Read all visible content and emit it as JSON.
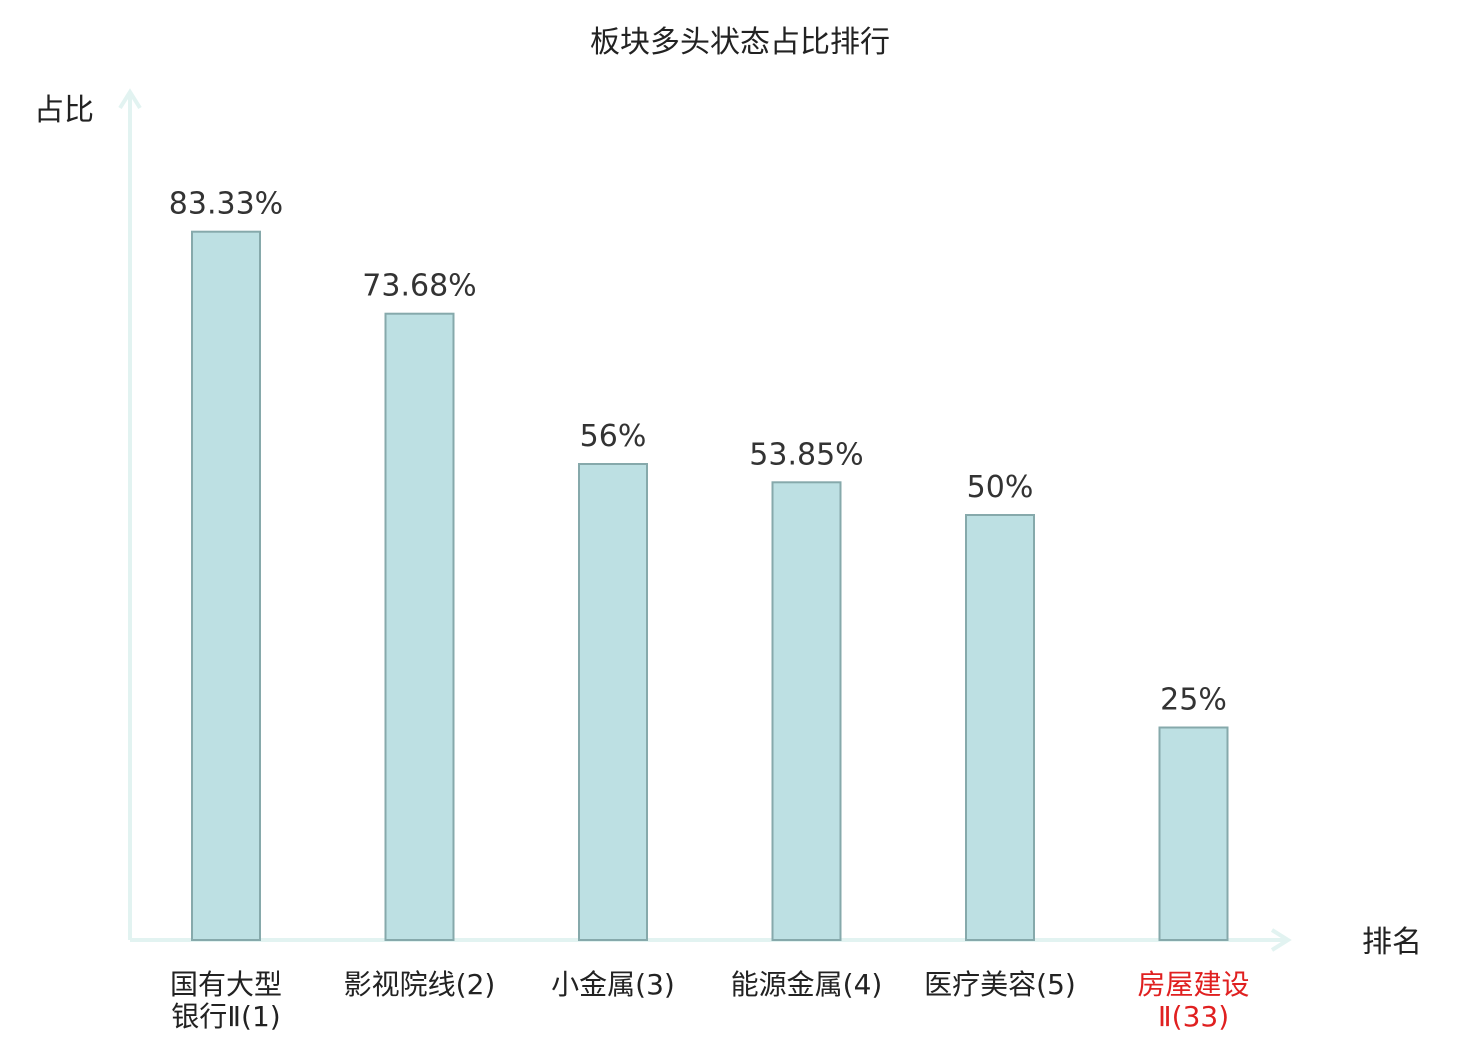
{
  "chart_data": {
    "type": "bar",
    "title": "板块多头状态占比排行",
    "ylabel": "占比",
    "xlabel": "排名",
    "ylim": [
      0,
      100
    ],
    "grid": false,
    "legend": "none",
    "categories": [
      {
        "lines": [
          "国有大型",
          "银行Ⅱ(1)"
        ],
        "highlight": false
      },
      {
        "lines": [
          "影视院线(2)"
        ],
        "highlight": false
      },
      {
        "lines": [
          "小金属(3)"
        ],
        "highlight": false
      },
      {
        "lines": [
          "能源金属(4)"
        ],
        "highlight": false
      },
      {
        "lines": [
          "医疗美容(5)"
        ],
        "highlight": false
      },
      {
        "lines": [
          "房屋建设",
          "Ⅱ(33)"
        ],
        "highlight": true
      }
    ],
    "values": [
      83.33,
      73.68,
      56,
      53.85,
      50,
      25
    ],
    "value_labels": [
      "83.33%",
      "73.68%",
      "56%",
      "53.85%",
      "50%",
      "25%"
    ],
    "colors": {
      "bar_fill": "#bde0e3",
      "bar_stroke": "#86a9ab",
      "axis": "#e2f3f1",
      "highlight_text": "#e02020"
    }
  }
}
